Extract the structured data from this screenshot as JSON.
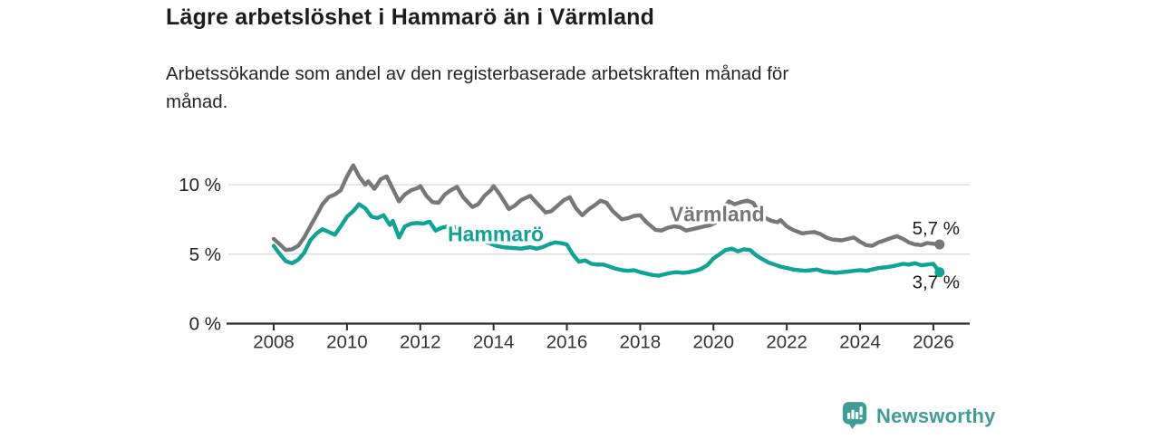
{
  "header": {
    "title": "Lägre arbetslöshet i Hammarö än i Värmland",
    "subtitle": "Arbetssökande som andel av den registerbaserade arbetskraften månad för månad.",
    "subtitle_lines": [
      "Arbetssökande som andel av den registerbaserade arbetskraften månad för",
      "månad."
    ]
  },
  "footer": {
    "brand": "Newsworthy",
    "brand_color": "#3f9c96"
  },
  "colors": {
    "varmland_line": "#76777b",
    "hammaro_line": "#0fa396",
    "gridline": "#d8d8d8",
    "axis": "#2b2b2b",
    "tick_label": "#333333",
    "value_label": "#1a1a1a"
  },
  "chart_data": {
    "type": "line",
    "title": "Lägre arbetslöshet i Hammarö än i Värmland",
    "subtitle": "Arbetssökande som andel av den registerbaserade arbetskraften månad för månad.",
    "unit": "%",
    "grid": true,
    "legend": "inline-labels",
    "x_axis": {
      "ticks": [
        "2008",
        "2010",
        "2012",
        "2014",
        "2016",
        "2018",
        "2020",
        "2022",
        "2024",
        "2026"
      ],
      "range": [
        2007.75,
        2027.0
      ]
    },
    "y_axis": {
      "ticks": [
        {
          "value": 0,
          "label": "0 %"
        },
        {
          "value": 5,
          "label": "5 %"
        },
        {
          "value": 10,
          "label": "10 %"
        }
      ],
      "range": [
        0,
        12
      ]
    },
    "series": [
      {
        "name": "Värmland",
        "color": "#76777b",
        "end_label": "5,7 %",
        "last_value": 5.7,
        "label_anchor": {
          "x": 2020.1,
          "y": 7.9
        },
        "points": [
          [
            2008.0,
            6.1
          ],
          [
            2008.17,
            5.7
          ],
          [
            2008.33,
            5.3
          ],
          [
            2008.5,
            5.35
          ],
          [
            2008.67,
            5.6
          ],
          [
            2008.83,
            6.2
          ],
          [
            2009.0,
            7.0
          ],
          [
            2009.17,
            7.8
          ],
          [
            2009.33,
            8.6
          ],
          [
            2009.5,
            9.1
          ],
          [
            2009.67,
            9.3
          ],
          [
            2009.83,
            9.6
          ],
          [
            2010.0,
            10.6
          ],
          [
            2010.17,
            11.4
          ],
          [
            2010.33,
            10.6
          ],
          [
            2010.5,
            10.0
          ],
          [
            2010.58,
            10.25
          ],
          [
            2010.75,
            9.7
          ],
          [
            2010.92,
            10.4
          ],
          [
            2011.08,
            10.6
          ],
          [
            2011.25,
            9.7
          ],
          [
            2011.42,
            8.8
          ],
          [
            2011.58,
            9.3
          ],
          [
            2011.75,
            9.6
          ],
          [
            2011.92,
            9.75
          ],
          [
            2012.0,
            9.9
          ],
          [
            2012.17,
            9.2
          ],
          [
            2012.33,
            8.75
          ],
          [
            2012.5,
            8.7
          ],
          [
            2012.67,
            9.3
          ],
          [
            2012.83,
            9.6
          ],
          [
            2013.0,
            9.85
          ],
          [
            2013.17,
            9.1
          ],
          [
            2013.42,
            8.4
          ],
          [
            2013.58,
            8.6
          ],
          [
            2013.75,
            9.2
          ],
          [
            2013.92,
            9.6
          ],
          [
            2014.0,
            9.9
          ],
          [
            2014.17,
            9.3
          ],
          [
            2014.42,
            8.25
          ],
          [
            2014.58,
            8.5
          ],
          [
            2014.75,
            8.9
          ],
          [
            2015.0,
            9.2
          ],
          [
            2015.17,
            8.7
          ],
          [
            2015.42,
            8.0
          ],
          [
            2015.58,
            8.1
          ],
          [
            2015.75,
            8.5
          ],
          [
            2015.92,
            8.9
          ],
          [
            2016.08,
            9.1
          ],
          [
            2016.25,
            8.3
          ],
          [
            2016.42,
            7.8
          ],
          [
            2016.58,
            8.2
          ],
          [
            2016.75,
            8.5
          ],
          [
            2016.92,
            8.85
          ],
          [
            2017.08,
            8.7
          ],
          [
            2017.25,
            8.1
          ],
          [
            2017.5,
            7.5
          ],
          [
            2017.67,
            7.6
          ],
          [
            2017.83,
            7.75
          ],
          [
            2018.0,
            7.8
          ],
          [
            2018.17,
            7.3
          ],
          [
            2018.42,
            6.75
          ],
          [
            2018.58,
            6.7
          ],
          [
            2018.75,
            6.9
          ],
          [
            2018.92,
            7.0
          ],
          [
            2019.08,
            6.95
          ],
          [
            2019.25,
            6.7
          ],
          [
            2019.42,
            6.8
          ],
          [
            2019.58,
            6.9
          ],
          [
            2019.75,
            7.0
          ],
          [
            2019.92,
            7.1
          ],
          [
            2020.08,
            7.3
          ],
          [
            2020.25,
            8.2
          ],
          [
            2020.42,
            8.8
          ],
          [
            2020.58,
            8.6
          ],
          [
            2020.75,
            8.75
          ],
          [
            2020.92,
            8.85
          ],
          [
            2021.08,
            8.7
          ],
          [
            2021.25,
            8.0
          ],
          [
            2021.42,
            7.6
          ],
          [
            2021.58,
            7.4
          ],
          [
            2021.75,
            7.3
          ],
          [
            2021.83,
            7.45
          ],
          [
            2022.0,
            7.0
          ],
          [
            2022.17,
            6.75
          ],
          [
            2022.42,
            6.5
          ],
          [
            2022.58,
            6.55
          ],
          [
            2022.75,
            6.6
          ],
          [
            2022.92,
            6.45
          ],
          [
            2023.08,
            6.2
          ],
          [
            2023.25,
            6.05
          ],
          [
            2023.5,
            6.0
          ],
          [
            2023.67,
            6.1
          ],
          [
            2023.83,
            6.2
          ],
          [
            2024.0,
            5.9
          ],
          [
            2024.17,
            5.65
          ],
          [
            2024.33,
            5.6
          ],
          [
            2024.5,
            5.85
          ],
          [
            2024.67,
            6.0
          ],
          [
            2024.83,
            6.15
          ],
          [
            2025.0,
            6.3
          ],
          [
            2025.17,
            6.1
          ],
          [
            2025.33,
            5.85
          ],
          [
            2025.5,
            5.7
          ],
          [
            2025.67,
            5.65
          ],
          [
            2025.83,
            5.8
          ],
          [
            2026.0,
            5.75
          ],
          [
            2026.17,
            5.7
          ]
        ]
      },
      {
        "name": "Hammarö",
        "color": "#0fa396",
        "end_label": "3,7 %",
        "last_value": 3.7,
        "label_anchor": {
          "x": 2014.06,
          "y": 6.45
        },
        "points": [
          [
            2008.0,
            5.6
          ],
          [
            2008.17,
            5.0
          ],
          [
            2008.33,
            4.5
          ],
          [
            2008.5,
            4.35
          ],
          [
            2008.67,
            4.6
          ],
          [
            2008.83,
            5.1
          ],
          [
            2009.0,
            6.0
          ],
          [
            2009.17,
            6.5
          ],
          [
            2009.33,
            6.8
          ],
          [
            2009.5,
            6.6
          ],
          [
            2009.67,
            6.4
          ],
          [
            2009.83,
            7.0
          ],
          [
            2010.0,
            7.7
          ],
          [
            2010.17,
            8.1
          ],
          [
            2010.33,
            8.6
          ],
          [
            2010.5,
            8.3
          ],
          [
            2010.67,
            7.7
          ],
          [
            2010.83,
            7.6
          ],
          [
            2011.0,
            7.8
          ],
          [
            2011.17,
            7.1
          ],
          [
            2011.25,
            7.4
          ],
          [
            2011.42,
            6.2
          ],
          [
            2011.58,
            7.0
          ],
          [
            2011.75,
            7.2
          ],
          [
            2011.92,
            7.25
          ],
          [
            2012.08,
            7.2
          ],
          [
            2012.25,
            7.35
          ],
          [
            2012.42,
            6.7
          ],
          [
            2012.58,
            6.9
          ],
          [
            2012.75,
            7.0
          ],
          [
            2012.92,
            6.95
          ],
          [
            2013.08,
            6.85
          ],
          [
            2013.25,
            6.65
          ],
          [
            2013.42,
            6.4
          ],
          [
            2013.58,
            6.15
          ],
          [
            2013.75,
            5.95
          ],
          [
            2013.92,
            5.75
          ],
          [
            2014.08,
            5.6
          ],
          [
            2014.25,
            5.5
          ],
          [
            2014.5,
            5.45
          ],
          [
            2014.75,
            5.4
          ],
          [
            2015.0,
            5.5
          ],
          [
            2015.17,
            5.4
          ],
          [
            2015.33,
            5.5
          ],
          [
            2015.5,
            5.7
          ],
          [
            2015.67,
            5.85
          ],
          [
            2015.83,
            5.8
          ],
          [
            2016.0,
            5.7
          ],
          [
            2016.17,
            4.95
          ],
          [
            2016.33,
            4.45
          ],
          [
            2016.5,
            4.55
          ],
          [
            2016.67,
            4.3
          ],
          [
            2016.83,
            4.25
          ],
          [
            2017.0,
            4.25
          ],
          [
            2017.17,
            4.1
          ],
          [
            2017.33,
            3.95
          ],
          [
            2017.5,
            3.85
          ],
          [
            2017.67,
            3.8
          ],
          [
            2017.83,
            3.85
          ],
          [
            2018.0,
            3.7
          ],
          [
            2018.17,
            3.6
          ],
          [
            2018.33,
            3.5
          ],
          [
            2018.5,
            3.45
          ],
          [
            2018.67,
            3.55
          ],
          [
            2018.83,
            3.65
          ],
          [
            2019.0,
            3.7
          ],
          [
            2019.17,
            3.65
          ],
          [
            2019.33,
            3.7
          ],
          [
            2019.5,
            3.8
          ],
          [
            2019.67,
            3.95
          ],
          [
            2019.83,
            4.2
          ],
          [
            2020.0,
            4.7
          ],
          [
            2020.17,
            5.0
          ],
          [
            2020.33,
            5.3
          ],
          [
            2020.5,
            5.4
          ],
          [
            2020.67,
            5.2
          ],
          [
            2020.83,
            5.35
          ],
          [
            2021.0,
            5.3
          ],
          [
            2021.17,
            4.9
          ],
          [
            2021.33,
            4.65
          ],
          [
            2021.5,
            4.4
          ],
          [
            2021.67,
            4.25
          ],
          [
            2021.83,
            4.1
          ],
          [
            2022.0,
            4.0
          ],
          [
            2022.17,
            3.9
          ],
          [
            2022.33,
            3.85
          ],
          [
            2022.5,
            3.8
          ],
          [
            2022.67,
            3.85
          ],
          [
            2022.83,
            3.9
          ],
          [
            2023.0,
            3.75
          ],
          [
            2023.17,
            3.7
          ],
          [
            2023.33,
            3.65
          ],
          [
            2023.5,
            3.7
          ],
          [
            2023.67,
            3.75
          ],
          [
            2023.83,
            3.8
          ],
          [
            2024.0,
            3.85
          ],
          [
            2024.17,
            3.8
          ],
          [
            2024.33,
            3.9
          ],
          [
            2024.5,
            4.0
          ],
          [
            2024.67,
            4.05
          ],
          [
            2024.83,
            4.1
          ],
          [
            2025.0,
            4.2
          ],
          [
            2025.17,
            4.3
          ],
          [
            2025.33,
            4.25
          ],
          [
            2025.5,
            4.35
          ],
          [
            2025.67,
            4.2
          ],
          [
            2025.83,
            4.25
          ],
          [
            2026.0,
            4.3
          ],
          [
            2026.17,
            3.7
          ]
        ]
      }
    ]
  }
}
